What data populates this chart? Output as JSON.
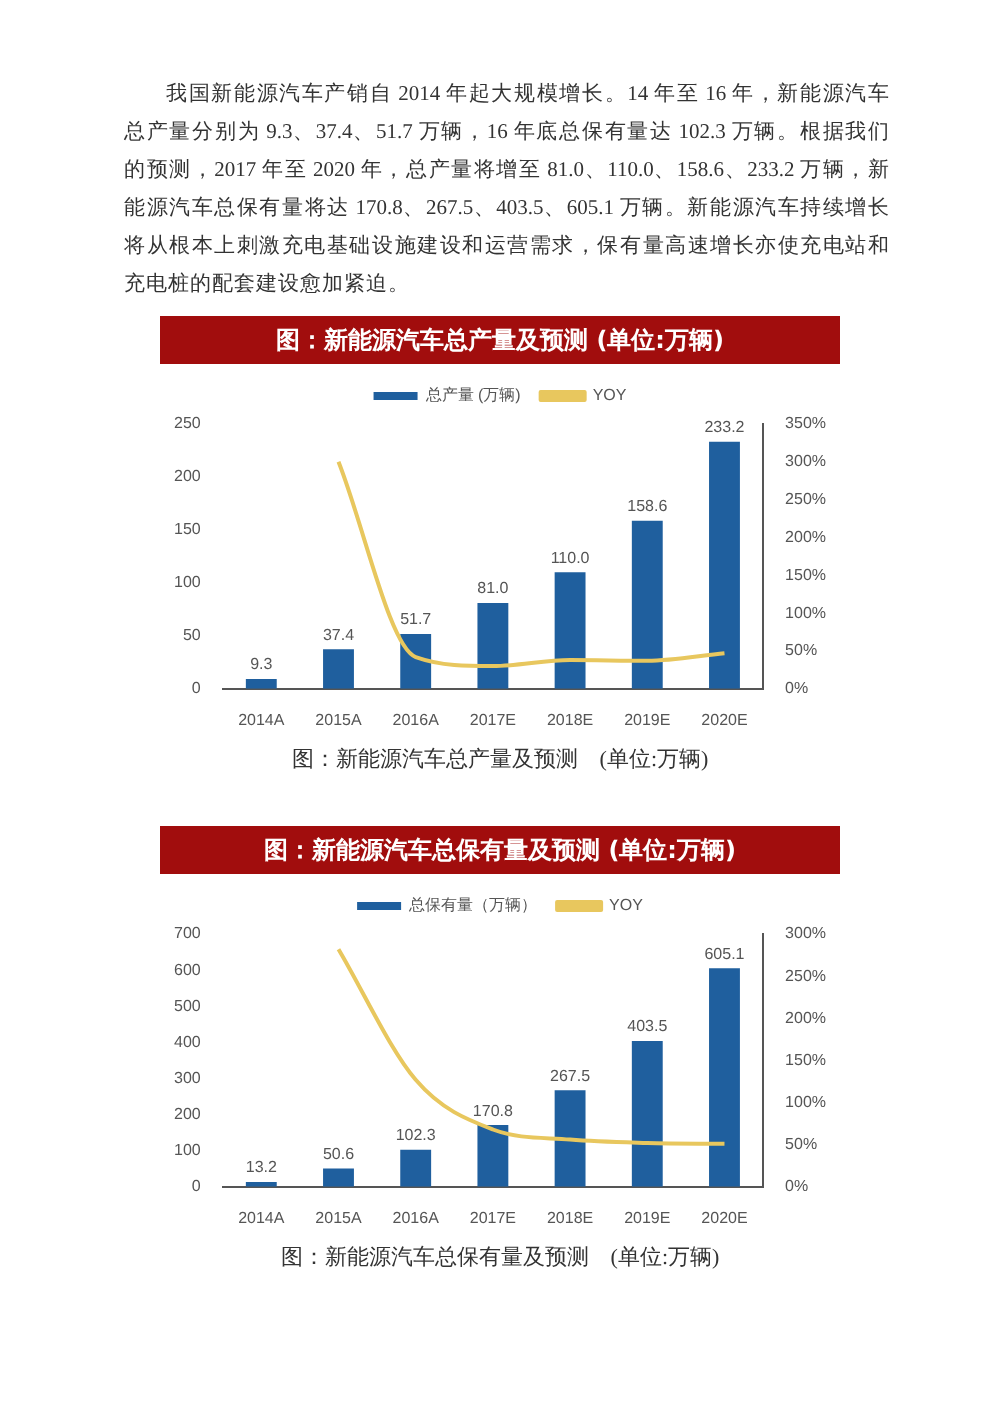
{
  "chart_data": [
    {
      "type": "bar",
      "title": "图：新能源汽车总产量及预测 (单位:万辆)",
      "categories": [
        "2014A",
        "2015A",
        "2016A",
        "2017E",
        "2018E",
        "2019E",
        "2020E"
      ],
      "series": [
        {
          "name": "总产量 (万辆)",
          "color": "#1f5f9e",
          "values": [
            9.3,
            37.4,
            51.7,
            81.0,
            110.0,
            158.6,
            233.2
          ],
          "value_labels": [
            "9.3",
            "37.4",
            "51.7",
            "81.0",
            "110.0",
            "158.6",
            "233.2"
          ]
        },
        {
          "name": "YOY",
          "type": "line",
          "axis": "y2",
          "color": "#e8c75e",
          "values": [
            null,
            300,
            42,
            30,
            38,
            37,
            47
          ]
        }
      ],
      "ylim": [
        0,
        250
      ],
      "yticks": [
        0,
        50,
        100,
        150,
        200,
        250
      ],
      "y2lim": [
        0,
        350
      ],
      "y2ticks": [
        {
          "value": 0,
          "label": "0%"
        },
        {
          "value": 50,
          "label": "50%"
        },
        {
          "value": 100,
          "label": "100%"
        },
        {
          "value": 150,
          "label": "150%"
        },
        {
          "value": 200,
          "label": "200%"
        },
        {
          "value": 250,
          "label": "250%"
        },
        {
          "value": 300,
          "label": "300%"
        },
        {
          "value": 350,
          "label": "350%"
        }
      ],
      "legend": "top",
      "grid": false,
      "marker": "none",
      "annotations": [
        "我国新能源汽车产销自 2014 年起大规模增长。14 年至 16 年，新能源汽车总产量分别为 9.3、37.4、51.7 万辆，16 年底总保有量达 102.3 万辆。根据我们的预测，2017 年至 2020 年，总产量将增至 81.0、110.0、158.6、233.2 万辆，新能源汽车总保有量将达 170.8、267.5、403.5、605.1 万辆。新能源汽车持续增长将从根本上刺激充电基础设施建设和运营需求，保有量高速增长亦使充电站和充电桩的配套建设愈加紧迫。",
        "图：新能源汽车总产量及预测　(单位:万辆)"
      ]
    },
    {
      "type": "bar",
      "title": "图：新能源汽车总保有量及预测 (单位:万辆)",
      "categories": [
        "2014A",
        "2015A",
        "2016A",
        "2017E",
        "2018E",
        "2019E",
        "2020E"
      ],
      "series": [
        {
          "name": "总保有量（万辆）",
          "color": "#1f5f9e",
          "values": [
            13.2,
            50.6,
            102.3,
            170.8,
            267.5,
            403.5,
            605.1
          ],
          "value_labels": [
            "13.2",
            "50.6",
            "102.3",
            "170.8",
            "267.5",
            "403.5",
            "605.1"
          ]
        },
        {
          "name": "YOY",
          "type": "line",
          "axis": "y2",
          "color": "#e8c75e",
          "values": [
            null,
            282,
            127,
            68,
            56,
            52,
            51
          ]
        }
      ],
      "ylim": [
        0,
        700
      ],
      "yticks": [
        0,
        100,
        200,
        300,
        400,
        500,
        600,
        700
      ],
      "y2lim": [
        0,
        300
      ],
      "y2ticks": [
        {
          "value": 0,
          "label": "0%"
        },
        {
          "value": 50,
          "label": "50%"
        },
        {
          "value": 100,
          "label": "100%"
        },
        {
          "value": 150,
          "label": "150%"
        },
        {
          "value": 200,
          "label": "200%"
        },
        {
          "value": 250,
          "label": "250%"
        },
        {
          "value": 300,
          "label": "300%"
        }
      ],
      "legend": "top",
      "grid": false,
      "marker": "none",
      "annotations": [
        "图：新能源汽车总保有量及预测　(单位:万辆)"
      ]
    }
  ]
}
